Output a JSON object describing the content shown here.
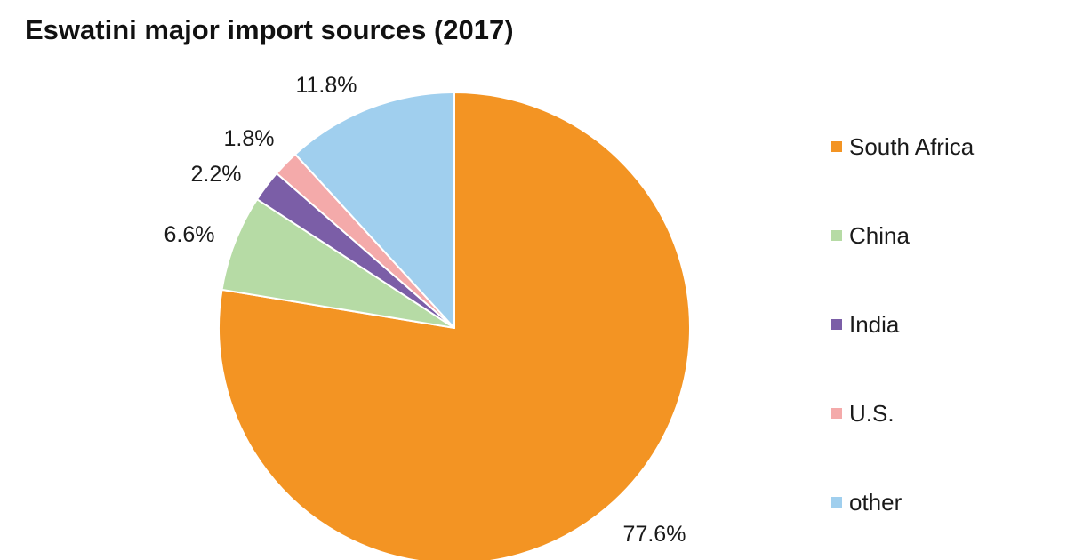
{
  "chart_data": {
    "type": "pie",
    "title": "Eswatini major import sources (2017)",
    "start": "12 o'clock",
    "direction": "clockwise",
    "legend_position": "right",
    "slices": [
      {
        "name": "South Africa",
        "value": 77.6,
        "label": "77.6%",
        "color": "#f39423"
      },
      {
        "name": "China",
        "value": 6.6,
        "label": "6.6%",
        "color": "#b6dba5"
      },
      {
        "name": "India",
        "value": 2.2,
        "label": "2.2%",
        "color": "#7b5ea7"
      },
      {
        "name": "U.S.",
        "value": 1.8,
        "label": "1.8%",
        "color": "#f4aaaa"
      },
      {
        "name": "other",
        "value": 11.8,
        "label": "11.8%",
        "color": "#a0cfee"
      }
    ],
    "slice_border_color": "#ffffff"
  }
}
